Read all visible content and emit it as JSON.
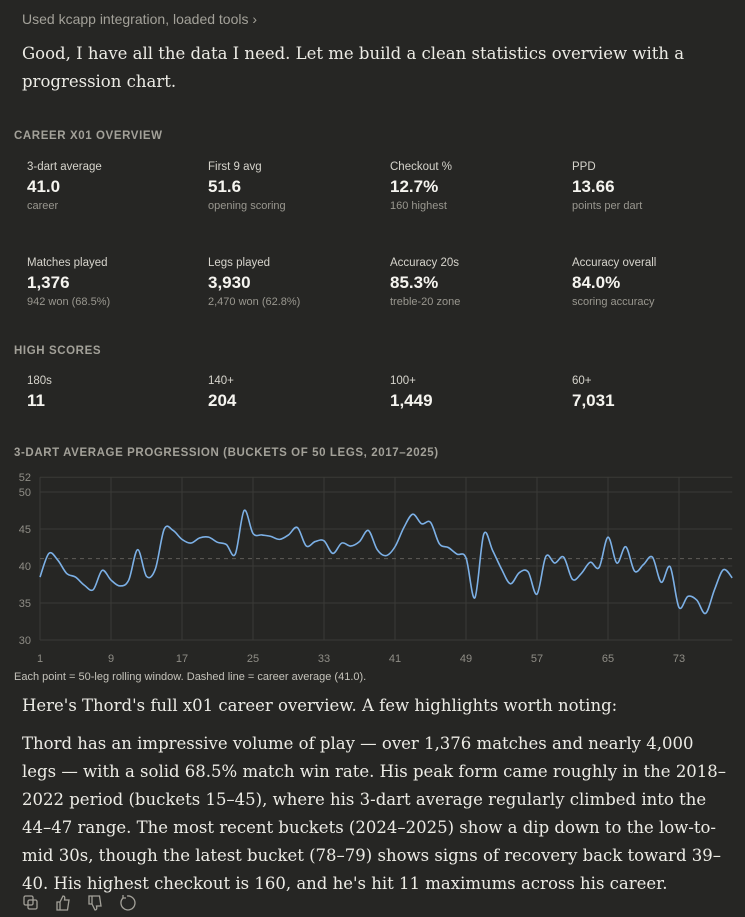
{
  "tool_status": "Used kcapp integration, loaded tools",
  "intro": "Good, I have all the data I need. Let me build a clean statistics overview with a progression chart.",
  "overview": {
    "title": "CAREER X01 OVERVIEW",
    "stats": [
      {
        "label": "3-dart average",
        "value": "41.0",
        "sub": "career"
      },
      {
        "label": "First 9 avg",
        "value": "51.6",
        "sub": "opening scoring"
      },
      {
        "label": "Checkout %",
        "value": "12.7%",
        "sub": "160 highest"
      },
      {
        "label": "PPD",
        "value": "13.66",
        "sub": "points per dart"
      },
      {
        "label": "Matches played",
        "value": "1,376",
        "sub": "942 won (68.5%)"
      },
      {
        "label": "Legs played",
        "value": "3,930",
        "sub": "2,470 won (62.8%)"
      },
      {
        "label": "Accuracy 20s",
        "value": "85.3%",
        "sub": "treble-20 zone"
      },
      {
        "label": "Accuracy overall",
        "value": "84.0%",
        "sub": "scoring accuracy"
      }
    ]
  },
  "high_scores": {
    "title": "HIGH SCORES",
    "stats": [
      {
        "label": "180s",
        "value": "11"
      },
      {
        "label": "140+",
        "value": "204"
      },
      {
        "label": "100+",
        "value": "1,449"
      },
      {
        "label": "60+",
        "value": "7,031"
      }
    ]
  },
  "chart_data": {
    "type": "line",
    "title": "3-DART AVERAGE PROGRESSION (BUCKETS OF 50 LEGS, 2017–2025)",
    "xlabel": "",
    "ylabel": "",
    "ylim": [
      30,
      52
    ],
    "yticks": [
      "30",
      "35",
      "40",
      "45",
      "50",
      "52"
    ],
    "xticks": [
      "1",
      "9",
      "17",
      "25",
      "33",
      "41",
      "49",
      "57",
      "65",
      "73"
    ],
    "grid": true,
    "reference_line": {
      "value": 41.0,
      "style": "dashed"
    },
    "line_color": "#7cb0e6",
    "x_start": 1,
    "values": [
      38.5,
      41.7,
      40.8,
      39.0,
      38.5,
      37.4,
      36.8,
      39.4,
      38.1,
      37.3,
      38.1,
      42.2,
      38.6,
      39.6,
      45.0,
      44.8,
      43.6,
      43.1,
      43.8,
      43.9,
      43.2,
      42.9,
      41.6,
      47.5,
      44.4,
      44.2,
      44.0,
      43.6,
      44.2,
      45.2,
      42.7,
      43.3,
      43.4,
      41.7,
      43.1,
      42.7,
      43.3,
      44.8,
      42.2,
      41.4,
      42.6,
      45.2,
      47.0,
      45.7,
      45.9,
      43.0,
      42.5,
      41.6,
      41.1,
      35.7,
      44.3,
      42.1,
      39.6,
      37.6,
      39.1,
      39.2,
      36.2,
      41.3,
      40.4,
      41.2,
      38.2,
      39.0,
      40.5,
      39.8,
      43.9,
      40.4,
      42.6,
      39.3,
      40.2,
      41.2,
      37.8,
      39.9,
      34.4,
      35.9,
      35.4,
      33.6,
      36.8,
      39.5,
      38.4
    ],
    "caption": "Each point = 50-leg rolling window. Dashed line = career average (41.0)."
  },
  "summary": {
    "lead": "Here's Thord's full x01 career overview. A few highlights worth noting:",
    "body": "Thord has an impressive volume of play — over 1,376 matches and nearly 4,000 legs — with a solid 68.5% match win rate. His peak form came roughly in the 2018–2022 period (buckets 15–45), where his 3-dart average regularly climbed into the 44–47 range. The most recent buckets (2024–2025) show a dip down to the low-to-mid 30s, though the latest bucket (78–79) shows signs of recovery back toward 39–40. His highest checkout is 160, and he's hit 11 maximums across his career."
  },
  "actions": [
    "copy-icon",
    "thumbs-up-icon",
    "thumbs-down-icon",
    "retry-icon"
  ]
}
